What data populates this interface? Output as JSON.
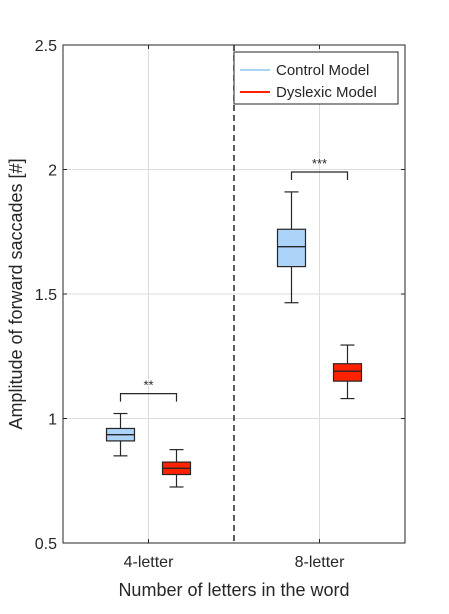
{
  "chart_data": {
    "type": "box",
    "xlabel": "Number of letters in the word",
    "ylabel": "Amplitude of forward saccades [#]",
    "ylim": [
      0.5,
      2.5
    ],
    "yticks": [
      0.5,
      1,
      1.5,
      2,
      2.5
    ],
    "ytick_labels": [
      "0.5",
      "1",
      "1.5",
      "2",
      "2.5"
    ],
    "categories": [
      "4-letter",
      "8-letter"
    ],
    "grid": true,
    "legend_position": "top-right",
    "series": [
      {
        "name": "Control Model",
        "color": "#acd3f8",
        "boxes": [
          {
            "min": 0.85,
            "q1": 0.91,
            "median": 0.935,
            "q3": 0.96,
            "max": 1.02
          },
          {
            "min": 1.465,
            "q1": 1.61,
            "median": 1.69,
            "q3": 1.76,
            "max": 1.91
          }
        ]
      },
      {
        "name": "Dyslexic Model",
        "color": "#ff2200",
        "boxes": [
          {
            "min": 0.725,
            "q1": 0.775,
            "median": 0.8,
            "q3": 0.825,
            "max": 0.875
          },
          {
            "min": 1.08,
            "q1": 1.15,
            "median": 1.19,
            "q3": 1.22,
            "max": 1.295
          }
        ]
      }
    ],
    "significance": [
      {
        "category": "4-letter",
        "label": "**",
        "bar_y": 1.1
      },
      {
        "category": "8-letter",
        "label": "***",
        "bar_y": 1.99
      }
    ],
    "separator_line": "dashed vertical line between categories"
  }
}
